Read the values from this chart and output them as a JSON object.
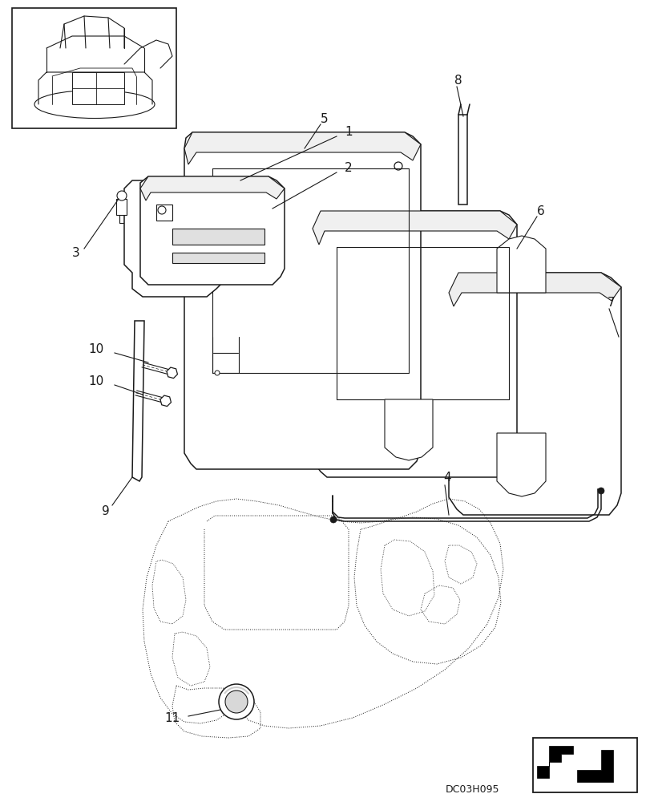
{
  "bg_color": "#ffffff",
  "line_color": "#1a1a1a",
  "watermark": "DC03H095",
  "figsize": [
    8.12,
    10.0
  ],
  "dpi": 100
}
